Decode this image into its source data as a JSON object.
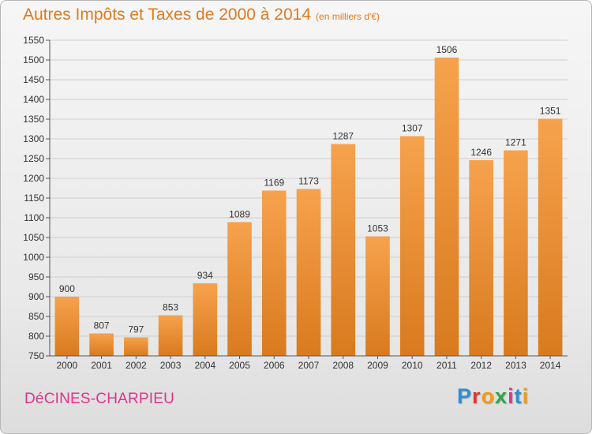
{
  "header": {
    "title": "Autres Impôts et Taxes de 2000 à 2014",
    "unit": "(en milliers d'€)"
  },
  "footer": {
    "city": "DéCINES-CHARPIEU",
    "logo_letters": [
      "P",
      "r",
      "o",
      "x",
      "i",
      "t",
      "i"
    ],
    "logo_colors": [
      "#2f8fd0",
      "#e8312f",
      "#f39a1e",
      "#2aa84a",
      "#e0338a",
      "#2f8fd0",
      "#f39a1e"
    ]
  },
  "chart_data": {
    "type": "bar",
    "title": "Autres Impôts et Taxes de 2000 à 2014",
    "categories": [
      "2000",
      "2001",
      "2002",
      "2003",
      "2004",
      "2005",
      "2006",
      "2007",
      "2008",
      "2009",
      "2010",
      "2011",
      "2012",
      "2013",
      "2014"
    ],
    "values": [
      900,
      807,
      797,
      853,
      934,
      1089,
      1169,
      1173,
      1287,
      1053,
      1307,
      1506,
      1246,
      1271,
      1351
    ],
    "ylim": [
      750,
      1550
    ],
    "yticks": [
      750,
      800,
      850,
      900,
      950,
      1000,
      1050,
      1100,
      1150,
      1200,
      1250,
      1300,
      1350,
      1400,
      1450,
      1500,
      1550
    ],
    "grid": true,
    "legend": "none",
    "bar_color_top": "#f6a24d",
    "bar_color_bottom": "#d97a1e"
  }
}
